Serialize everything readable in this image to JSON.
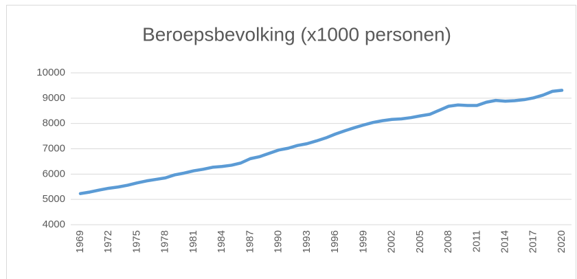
{
  "chart_data": {
    "type": "line",
    "title": "Beroepsbevolking (x1000 personen)",
    "x": [
      1969,
      1970,
      1971,
      1972,
      1973,
      1974,
      1975,
      1976,
      1977,
      1978,
      1979,
      1980,
      1981,
      1982,
      1983,
      1984,
      1985,
      1986,
      1987,
      1988,
      1989,
      1990,
      1991,
      1992,
      1993,
      1994,
      1995,
      1996,
      1997,
      1998,
      1999,
      2000,
      2001,
      2002,
      2003,
      2004,
      2005,
      2006,
      2007,
      2008,
      2009,
      2010,
      2011,
      2012,
      2013,
      2014,
      2015,
      2016,
      2017,
      2018,
      2019,
      2020
    ],
    "series": [
      {
        "name": "Beroepsbevolking",
        "color": "#5b9bd5",
        "values": [
          5230,
          5290,
          5370,
          5440,
          5490,
          5560,
          5650,
          5730,
          5790,
          5850,
          5970,
          6040,
          6130,
          6190,
          6270,
          6300,
          6350,
          6440,
          6610,
          6690,
          6820,
          6950,
          7020,
          7130,
          7200,
          7310,
          7430,
          7580,
          7710,
          7830,
          7940,
          8040,
          8110,
          8160,
          8180,
          8230,
          8300,
          8360,
          8520,
          8680,
          8730,
          8710,
          8710,
          8840,
          8910,
          8880,
          8900,
          8940,
          9010,
          9120,
          9270,
          9310
        ]
      }
    ],
    "xlim": [
      1969,
      2020
    ],
    "xticks": [
      1969,
      1972,
      1975,
      1978,
      1981,
      1984,
      1987,
      1990,
      1993,
      1996,
      1999,
      2002,
      2005,
      2008,
      2011,
      2014,
      2017,
      2020
    ],
    "ylim": [
      4000,
      10000
    ],
    "yticks": [
      4000,
      5000,
      6000,
      7000,
      8000,
      9000,
      10000
    ],
    "grid": true
  }
}
